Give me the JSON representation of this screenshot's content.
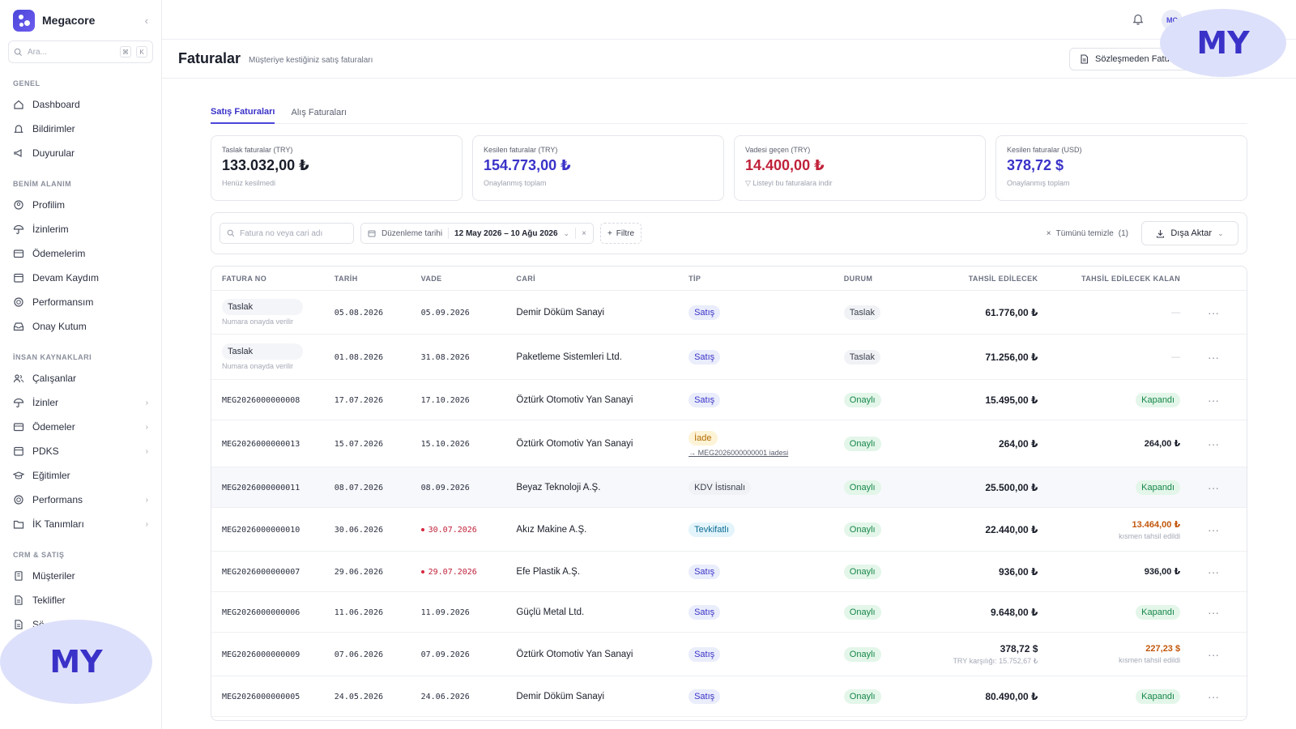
{
  "app": {
    "name": "Megacore"
  },
  "search": {
    "placeholder": "Ara...",
    "kbd1": "⌘",
    "kbd2": "K"
  },
  "nav": {
    "sections": [
      {
        "title": "GENEL",
        "items": [
          {
            "label": "Dashboard",
            "icon": "home-icon"
          },
          {
            "label": "Bildirimler",
            "icon": "bell-icon"
          },
          {
            "label": "Duyurular",
            "icon": "megaphone-icon"
          }
        ]
      },
      {
        "title": "BENİM ALANIM",
        "items": [
          {
            "label": "Profilim",
            "icon": "user-circle-icon"
          },
          {
            "label": "İzinlerim",
            "icon": "umbrella-icon"
          },
          {
            "label": "Ödemelerim",
            "icon": "wallet-icon"
          },
          {
            "label": "Devam Kaydım",
            "icon": "calendar-icon"
          },
          {
            "label": "Performansım",
            "icon": "target-icon"
          },
          {
            "label": "Onay Kutum",
            "icon": "inbox-icon"
          }
        ]
      },
      {
        "title": "İNSAN KAYNAKLARI",
        "items": [
          {
            "label": "Çalışanlar",
            "icon": "users-icon"
          },
          {
            "label": "İzinler",
            "icon": "umbrella-icon",
            "chevron": true
          },
          {
            "label": "Ödemeler",
            "icon": "wallet-icon",
            "chevron": true
          },
          {
            "label": "PDKS",
            "icon": "calendar-icon",
            "chevron": true
          },
          {
            "label": "Eğitimler",
            "icon": "graduation-icon"
          },
          {
            "label": "Performans",
            "icon": "target-icon",
            "chevron": true
          },
          {
            "label": "İK Tanımları",
            "icon": "folder-icon",
            "chevron": true
          }
        ]
      },
      {
        "title": "CRM & SATIŞ",
        "items": [
          {
            "label": "Müşteriler",
            "icon": "building-icon"
          },
          {
            "label": "Teklifler",
            "icon": "document-icon"
          },
          {
            "label": "Sö...",
            "icon": "document-icon"
          }
        ]
      }
    ]
  },
  "topbar": {
    "avatar": "MC"
  },
  "page": {
    "title": "Faturalar",
    "subtitle": "Müşteriye kestiğiniz satış faturaları",
    "head_button": "Sözleşmeden Fatur..."
  },
  "watermark": {
    "text": "MY"
  },
  "tabs": [
    {
      "label": "Satış Faturaları",
      "active": true
    },
    {
      "label": "Alış Faturaları",
      "active": false
    }
  ],
  "cards": [
    {
      "label": "Taslak faturalar (TRY)",
      "value": "133.032,00 ₺",
      "note": "Henüz kesilmedi",
      "color": "#1a1e2a"
    },
    {
      "label": "Kesilen faturalar (TRY)",
      "value": "154.773,00 ₺",
      "note": "Onaylanmış toplam",
      "color": "#3a32c8"
    },
    {
      "label": "Vadesi geçen (TRY)",
      "value": "14.400,00 ₺",
      "note": "Listeyi bu faturalara indir",
      "color": "#c0223b"
    },
    {
      "label": "Kesilen faturalar (USD)",
      "value": "378,72 $",
      "note": "Onaylanmış toplam",
      "color": "#3a32c8"
    }
  ],
  "filters": {
    "search_placeholder": "Fatura no veya cari adı",
    "date_label": "Düzenleme tarihi",
    "date_value": "12 May 2026 – 10 Ağu 2026",
    "filter_label": "Filtre",
    "clear_label": "Tümünü temizle",
    "clear_count": "(1)",
    "export_label": "Dışa Aktar"
  },
  "table": {
    "headers": [
      "FATURA NO",
      "TARİH",
      "VADE",
      "CARİ",
      "TİP",
      "DURUM",
      "TAHSİL EDİLECEK",
      "TAHSİL EDİLECEK KALAN"
    ],
    "rows": [
      {
        "no": "Taslak",
        "no_sub": "Numara onayda verilir",
        "tarih": "05.08.2026",
        "vade": "05.09.2026",
        "cari": "Demir Döküm Sanayi",
        "tip": "Satış",
        "tip_kind": "satis",
        "durum": "Taslak",
        "durum_kind": "taslak",
        "tahsil": "61.776,00 ₺",
        "kalan": "—",
        "kalan_kind": "dash",
        "h": 54
      },
      {
        "no": "Taslak",
        "no_sub": "Numara onayda verilir",
        "tarih": "01.08.2026",
        "vade": "31.08.2026",
        "cari": "Paketleme Sistemleri Ltd.",
        "tip": "Satış",
        "tip_kind": "satis",
        "durum": "Taslak",
        "durum_kind": "taslak",
        "tahsil": "71.256,00 ₺",
        "kalan": "—",
        "kalan_kind": "dash",
        "h": 56
      },
      {
        "no": "MEG2026000000008",
        "tarih": "17.07.2026",
        "vade": "17.10.2026",
        "cari": "Öztürk Otomotiv Yan Sanayi",
        "tip": "Satış",
        "tip_kind": "satis",
        "durum": "Onaylı",
        "durum_kind": "onayli",
        "tahsil": "15.495,00 ₺",
        "kalan": "Kapandı",
        "kalan_kind": "kapandi",
        "h": 50
      },
      {
        "no": "MEG2026000000013",
        "tarih": "15.07.2026",
        "vade": "15.10.2026",
        "cari": "Öztürk Otomotiv Yan Sanayi",
        "tip": "İade",
        "tip_kind": "iade",
        "tip_sub": "→ MEG2026000000001 iadesi",
        "durum": "Onaylı",
        "durum_kind": "onayli",
        "tahsil": "264,00 ₺",
        "kalan": "264,00 ₺",
        "kalan_kind": "plain",
        "h": 58
      },
      {
        "no": "MEG2026000000011",
        "tarih": "08.07.2026",
        "vade": "08.09.2026",
        "cari": "Beyaz Teknoloji A.Ş.",
        "tip": "KDV İstisnalı",
        "tip_kind": "kdv",
        "durum": "Onaylı",
        "durum_kind": "onayli",
        "tahsil": "25.500,00 ₺",
        "kalan": "Kapandı",
        "kalan_kind": "kapandi",
        "h": 50,
        "highlight": true
      },
      {
        "no": "MEG2026000000010",
        "tarih": "30.06.2026",
        "vade": "30.07.2026",
        "vade_overdue": true,
        "cari": "Akız Makine A.Ş.",
        "tip": "Tevkifatlı",
        "tip_kind": "tevk",
        "durum": "Onaylı",
        "durum_kind": "onayli",
        "tahsil": "22.440,00 ₺",
        "kalan": "13.464,00 ₺",
        "kalan_sub": "kısmen tahsil edildi",
        "kalan_kind": "warn",
        "h": 54
      },
      {
        "no": "MEG2026000000007",
        "tarih": "29.06.2026",
        "vade": "29.07.2026",
        "vade_overdue": true,
        "cari": "Efe Plastik A.Ş.",
        "tip": "Satış",
        "tip_kind": "satis",
        "durum": "Onaylı",
        "durum_kind": "onayli",
        "tahsil": "936,00 ₺",
        "kalan": "936,00 ₺",
        "kalan_kind": "plain",
        "h": 50
      },
      {
        "no": "MEG2026000000006",
        "tarih": "11.06.2026",
        "vade": "11.09.2026",
        "cari": "Güçlü Metal Ltd.",
        "tip": "Satış",
        "tip_kind": "satis",
        "durum": "Onaylı",
        "durum_kind": "onayli",
        "tahsil": "9.648,00 ₺",
        "kalan": "Kapandı",
        "kalan_kind": "kapandi",
        "h": 50
      },
      {
        "no": "MEG2026000000009",
        "tarih": "07.06.2026",
        "vade": "07.09.2026",
        "cari": "Öztürk Otomotiv Yan Sanayi",
        "tip": "Satış",
        "tip_kind": "satis",
        "durum": "Onaylı",
        "durum_kind": "onayli",
        "tahsil": "378,72 $",
        "tahsil_sub": "TRY karşılığı: 15.752,67 ₺",
        "kalan": "227,23 $",
        "kalan_sub": "kısmen tahsil edildi",
        "kalan_kind": "warn",
        "h": 54
      },
      {
        "no": "MEG2026000000005",
        "tarih": "24.05.2026",
        "vade": "24.06.2026",
        "cari": "Demir Döküm Sanayi",
        "tip": "Satış",
        "tip_kind": "satis",
        "durum": "Onaylı",
        "durum_kind": "onayli",
        "tahsil": "80.490,00 ₺",
        "kalan": "Kapandı",
        "kalan_kind": "kapandi",
        "h": 50
      }
    ]
  }
}
